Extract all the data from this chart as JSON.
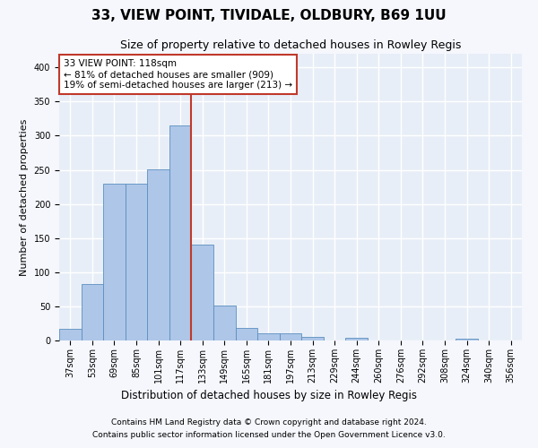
{
  "title": "33, VIEW POINT, TIVIDALE, OLDBURY, B69 1UU",
  "subtitle": "Size of property relative to detached houses in Rowley Regis",
  "xlabel": "Distribution of detached houses by size in Rowley Regis",
  "ylabel": "Number of detached properties",
  "footer_line1": "Contains HM Land Registry data © Crown copyright and database right 2024.",
  "footer_line2": "Contains public sector information licensed under the Open Government Licence v3.0.",
  "categories": [
    "37sqm",
    "53sqm",
    "69sqm",
    "85sqm",
    "101sqm",
    "117sqm",
    "133sqm",
    "149sqm",
    "165sqm",
    "181sqm",
    "197sqm",
    "213sqm",
    "229sqm",
    "244sqm",
    "260sqm",
    "276sqm",
    "292sqm",
    "308sqm",
    "324sqm",
    "340sqm",
    "356sqm"
  ],
  "values": [
    17,
    83,
    230,
    230,
    251,
    315,
    141,
    51,
    19,
    10,
    10,
    5,
    0,
    4,
    0,
    0,
    0,
    0,
    3,
    0,
    0
  ],
  "bar_color": "#aec6e8",
  "bar_edge_color": "#5a8fc0",
  "highlight_color": "#c0392b",
  "vline_x_index": 5,
  "annotation_title": "33 VIEW POINT: 118sqm",
  "annotation_line2": "← 81% of detached houses are smaller (909)",
  "annotation_line3": "19% of semi-detached houses are larger (213) →",
  "annotation_box_color": "#ffffff",
  "annotation_border_color": "#c0392b",
  "ylim": [
    0,
    420
  ],
  "yticks": [
    0,
    50,
    100,
    150,
    200,
    250,
    300,
    350,
    400
  ],
  "background_color": "#e8eef7",
  "grid_color": "#ffffff",
  "fig_bg_color": "#f5f7fc",
  "title_fontsize": 11,
  "subtitle_fontsize": 9,
  "xlabel_fontsize": 8.5,
  "ylabel_fontsize": 8,
  "tick_fontsize": 7,
  "annotation_fontsize": 7.5,
  "footer_fontsize": 6.5
}
